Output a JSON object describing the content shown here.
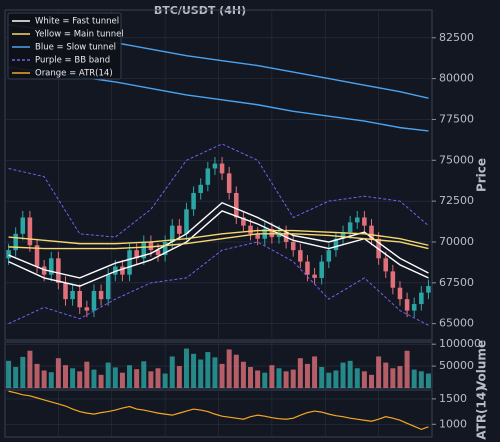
{
  "chart_data": {
    "type": "candlestick",
    "title": "BTC/USDT (4H)",
    "ylabel": "Price",
    "ylim": [
      64000,
      84200
    ],
    "yticks": [
      65000,
      67500,
      70000,
      72500,
      75000,
      77500,
      80000,
      82500
    ],
    "grid": true,
    "up_color": "#2ca6a4",
    "down_color": "#e0707a",
    "open": [
      69000,
      69500,
      70500,
      71500,
      69800,
      68500,
      68000,
      69000,
      67500,
      66500,
      67000,
      66000,
      65800,
      67000,
      66500,
      68000,
      68500,
      68000,
      69500,
      69000,
      70000,
      69500,
      69200,
      70000,
      71000,
      70500,
      72000,
      73000,
      73500,
      74500,
      74800,
      74200,
      73000,
      71500,
      71000,
      70500,
      70200,
      70800,
      70300,
      70600,
      70000,
      69500,
      68800,
      68000,
      67800,
      68800,
      69500,
      70200,
      70600,
      71200,
      71500,
      71000,
      70200,
      69000,
      68200,
      67200,
      66500,
      65800,
      66200,
      66900
    ],
    "high": [
      69900,
      70900,
      71900,
      71900,
      70200,
      68900,
      69400,
      69400,
      67900,
      67400,
      67400,
      66400,
      67400,
      67400,
      68400,
      68900,
      68900,
      69900,
      69900,
      70400,
      70400,
      69900,
      70400,
      71400,
      71400,
      72400,
      73400,
      73900,
      74900,
      75200,
      75200,
      74600,
      73400,
      71900,
      71400,
      70900,
      71200,
      71200,
      71000,
      71000,
      70400,
      69900,
      69200,
      68400,
      69200,
      69900,
      70600,
      71000,
      71600,
      71900,
      71900,
      71400,
      70600,
      69400,
      68600,
      67600,
      66900,
      66600,
      67300,
      67700
    ],
    "low": [
      68600,
      69100,
      70100,
      69400,
      68100,
      67600,
      67600,
      67100,
      66100,
      66100,
      65600,
      65400,
      65400,
      66100,
      66100,
      67600,
      67600,
      67600,
      68600,
      68600,
      69100,
      68800,
      68800,
      69600,
      70100,
      70100,
      71600,
      72600,
      73100,
      74100,
      73800,
      72600,
      71100,
      70600,
      70100,
      69800,
      69800,
      69900,
      69900,
      69600,
      69100,
      68400,
      67600,
      67400,
      67400,
      68400,
      69100,
      69800,
      70200,
      70800,
      70600,
      69800,
      68600,
      67800,
      66800,
      66100,
      65400,
      65400,
      65800,
      66500
    ],
    "close": [
      69500,
      70500,
      71500,
      69800,
      68500,
      68000,
      69000,
      67500,
      66500,
      67000,
      66000,
      65800,
      67000,
      66500,
      68000,
      68500,
      68000,
      69500,
      69000,
      70000,
      69500,
      69200,
      70000,
      71000,
      70500,
      72000,
      73000,
      73500,
      74500,
      74800,
      74200,
      73000,
      71500,
      71000,
      70500,
      70200,
      70800,
      70300,
      70600,
      70000,
      69500,
      68800,
      68000,
      67800,
      68800,
      69500,
      70200,
      70600,
      71200,
      71500,
      71000,
      70200,
      69000,
      68200,
      67200,
      66500,
      65800,
      66200,
      66900,
      67300
    ],
    "line_x": [
      0,
      5,
      10,
      15,
      20,
      25,
      30,
      35,
      40,
      45,
      50,
      55,
      59
    ],
    "overlays": [
      {
        "name": "White = Fast tunnel",
        "color": "#ffffff",
        "dash": false,
        "lines": [
          [
            69200,
            68300,
            67800,
            68700,
            69300,
            70500,
            72400,
            71500,
            70400,
            70000,
            70600,
            69000,
            68100
          ],
          [
            68800,
            67800,
            67300,
            68200,
            68900,
            70000,
            71900,
            71100,
            70100,
            69600,
            70200,
            68600,
            67800
          ]
        ]
      },
      {
        "name": "Yellow = Main tunnel",
        "color": "#f5d76e",
        "dash": false,
        "lines": [
          [
            70300,
            70100,
            69900,
            69900,
            70000,
            70200,
            70500,
            70700,
            70700,
            70600,
            70500,
            70200,
            69800
          ],
          [
            69700,
            69600,
            69600,
            69600,
            69700,
            69900,
            70200,
            70500,
            70500,
            70400,
            70200,
            70000,
            69600
          ]
        ]
      },
      {
        "name": "Blue = Slow tunnel",
        "color": "#4aa3f0",
        "dash": false,
        "lines": [
          [
            83300,
            83000,
            82600,
            82200,
            81800,
            81400,
            81100,
            80800,
            80400,
            80000,
            79600,
            79200,
            78800
          ],
          [
            80700,
            80400,
            80100,
            79800,
            79400,
            79000,
            78700,
            78400,
            78000,
            77700,
            77400,
            77000,
            76800
          ]
        ]
      },
      {
        "name": "Purple = BB band",
        "color": "#7b5cf0",
        "dash": true,
        "lines": [
          [
            74500,
            74000,
            70500,
            70300,
            72000,
            75000,
            76000,
            75000,
            71500,
            72500,
            72800,
            72500,
            71000
          ],
          [
            65000,
            66000,
            65300,
            66500,
            67500,
            67800,
            69500,
            70000,
            68800,
            66500,
            67800,
            65800,
            64900
          ]
        ]
      }
    ],
    "volume": {
      "label": "Volume",
      "ylim": [
        0,
        105000
      ],
      "yticks": [
        50000,
        100000
      ],
      "values": [
        62000,
        48000,
        71000,
        85000,
        55000,
        40000,
        36000,
        68000,
        52000,
        45000,
        38000,
        60000,
        42000,
        30000,
        58000,
        47000,
        35000,
        52000,
        43000,
        61000,
        38000,
        45000,
        33000,
        72000,
        50000,
        90000,
        78000,
        65000,
        82000,
        70000,
        55000,
        88000,
        76000,
        60000,
        48000,
        40000,
        35000,
        52000,
        45000,
        38000,
        42000,
        68000,
        55000,
        72000,
        48000,
        35000,
        40000,
        58000,
        62000,
        45000,
        38000,
        30000,
        72000,
        58000,
        45000,
        50000,
        85000,
        42000,
        38000,
        33000
      ]
    },
    "atr": {
      "name": "Orange = ATR(14)",
      "label": "ATR(14)",
      "color": "#f5a623",
      "ylim": [
        750,
        1675
      ],
      "yticks": [
        1000,
        1500
      ],
      "values": [
        1650,
        1620,
        1580,
        1560,
        1520,
        1480,
        1440,
        1400,
        1360,
        1300,
        1250,
        1220,
        1200,
        1230,
        1250,
        1280,
        1320,
        1350,
        1300,
        1280,
        1250,
        1220,
        1200,
        1180,
        1220,
        1260,
        1300,
        1280,
        1250,
        1200,
        1160,
        1140,
        1120,
        1100,
        1150,
        1180,
        1160,
        1130,
        1110,
        1100,
        1120,
        1180,
        1230,
        1260,
        1240,
        1200,
        1170,
        1150,
        1120,
        1100,
        1080,
        1060,
        1100,
        1150,
        1120,
        1080,
        1020,
        960,
        900,
        950
      ]
    }
  }
}
